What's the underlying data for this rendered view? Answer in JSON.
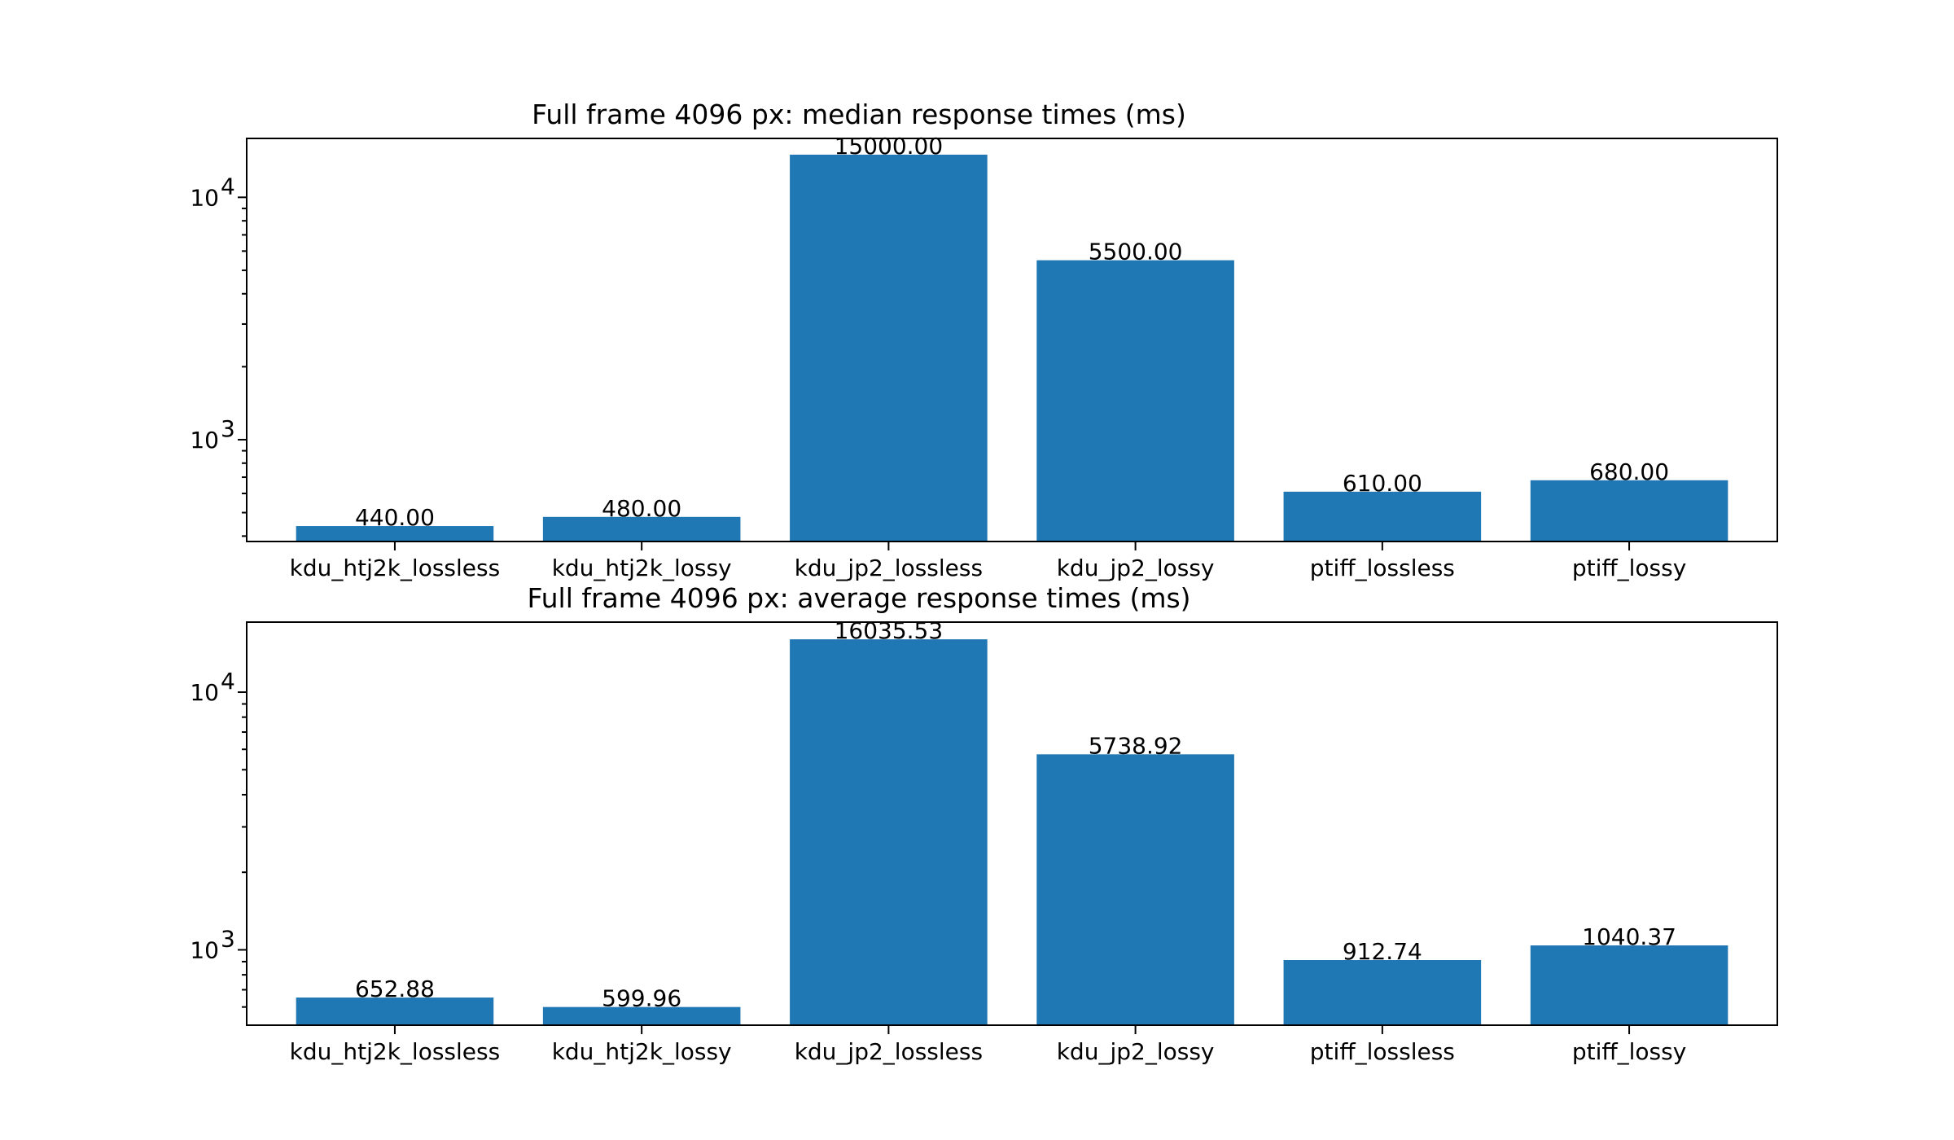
{
  "chart_data": [
    {
      "type": "bar",
      "title": "Full frame 4096 px: median response times (ms)",
      "xlabel": "",
      "ylabel": "",
      "yscale": "log",
      "ylim": [
        380,
        17500
      ],
      "categories": [
        "kdu_htj2k_lossless",
        "kdu_htj2k_lossy",
        "kdu_jp2_lossless",
        "kdu_jp2_lossy",
        "ptiff_lossless",
        "ptiff_lossy"
      ],
      "values": [
        440.0,
        480.0,
        15000.0,
        5500.0,
        610.0,
        680.0
      ],
      "data_labels": [
        "440.00",
        "480.00",
        "15000.00",
        "5500.00",
        "610.00",
        "680.00"
      ],
      "major_ticks": [
        {
          "value": 1000,
          "label": "10^3"
        },
        {
          "value": 10000,
          "label": "10^4"
        }
      ],
      "color": "#1f77b4",
      "grid": false
    },
    {
      "type": "bar",
      "title": "Full frame 4096 px: average response times (ms)",
      "xlabel": "",
      "ylabel": "",
      "yscale": "log",
      "ylim": [
        510,
        18700
      ],
      "categories": [
        "kdu_htj2k_lossless",
        "kdu_htj2k_lossy",
        "kdu_jp2_lossless",
        "kdu_jp2_lossy",
        "ptiff_lossless",
        "ptiff_lossy"
      ],
      "values": [
        652.88,
        599.96,
        16035.53,
        5738.92,
        912.74,
        1040.37
      ],
      "data_labels": [
        "652.88",
        "599.96",
        "16035.53",
        "5738.92",
        "912.74",
        "1040.37"
      ],
      "major_ticks": [
        {
          "value": 1000,
          "label": "10^3"
        },
        {
          "value": 10000,
          "label": "10^4"
        }
      ],
      "color": "#1f77b4",
      "grid": false
    }
  ]
}
